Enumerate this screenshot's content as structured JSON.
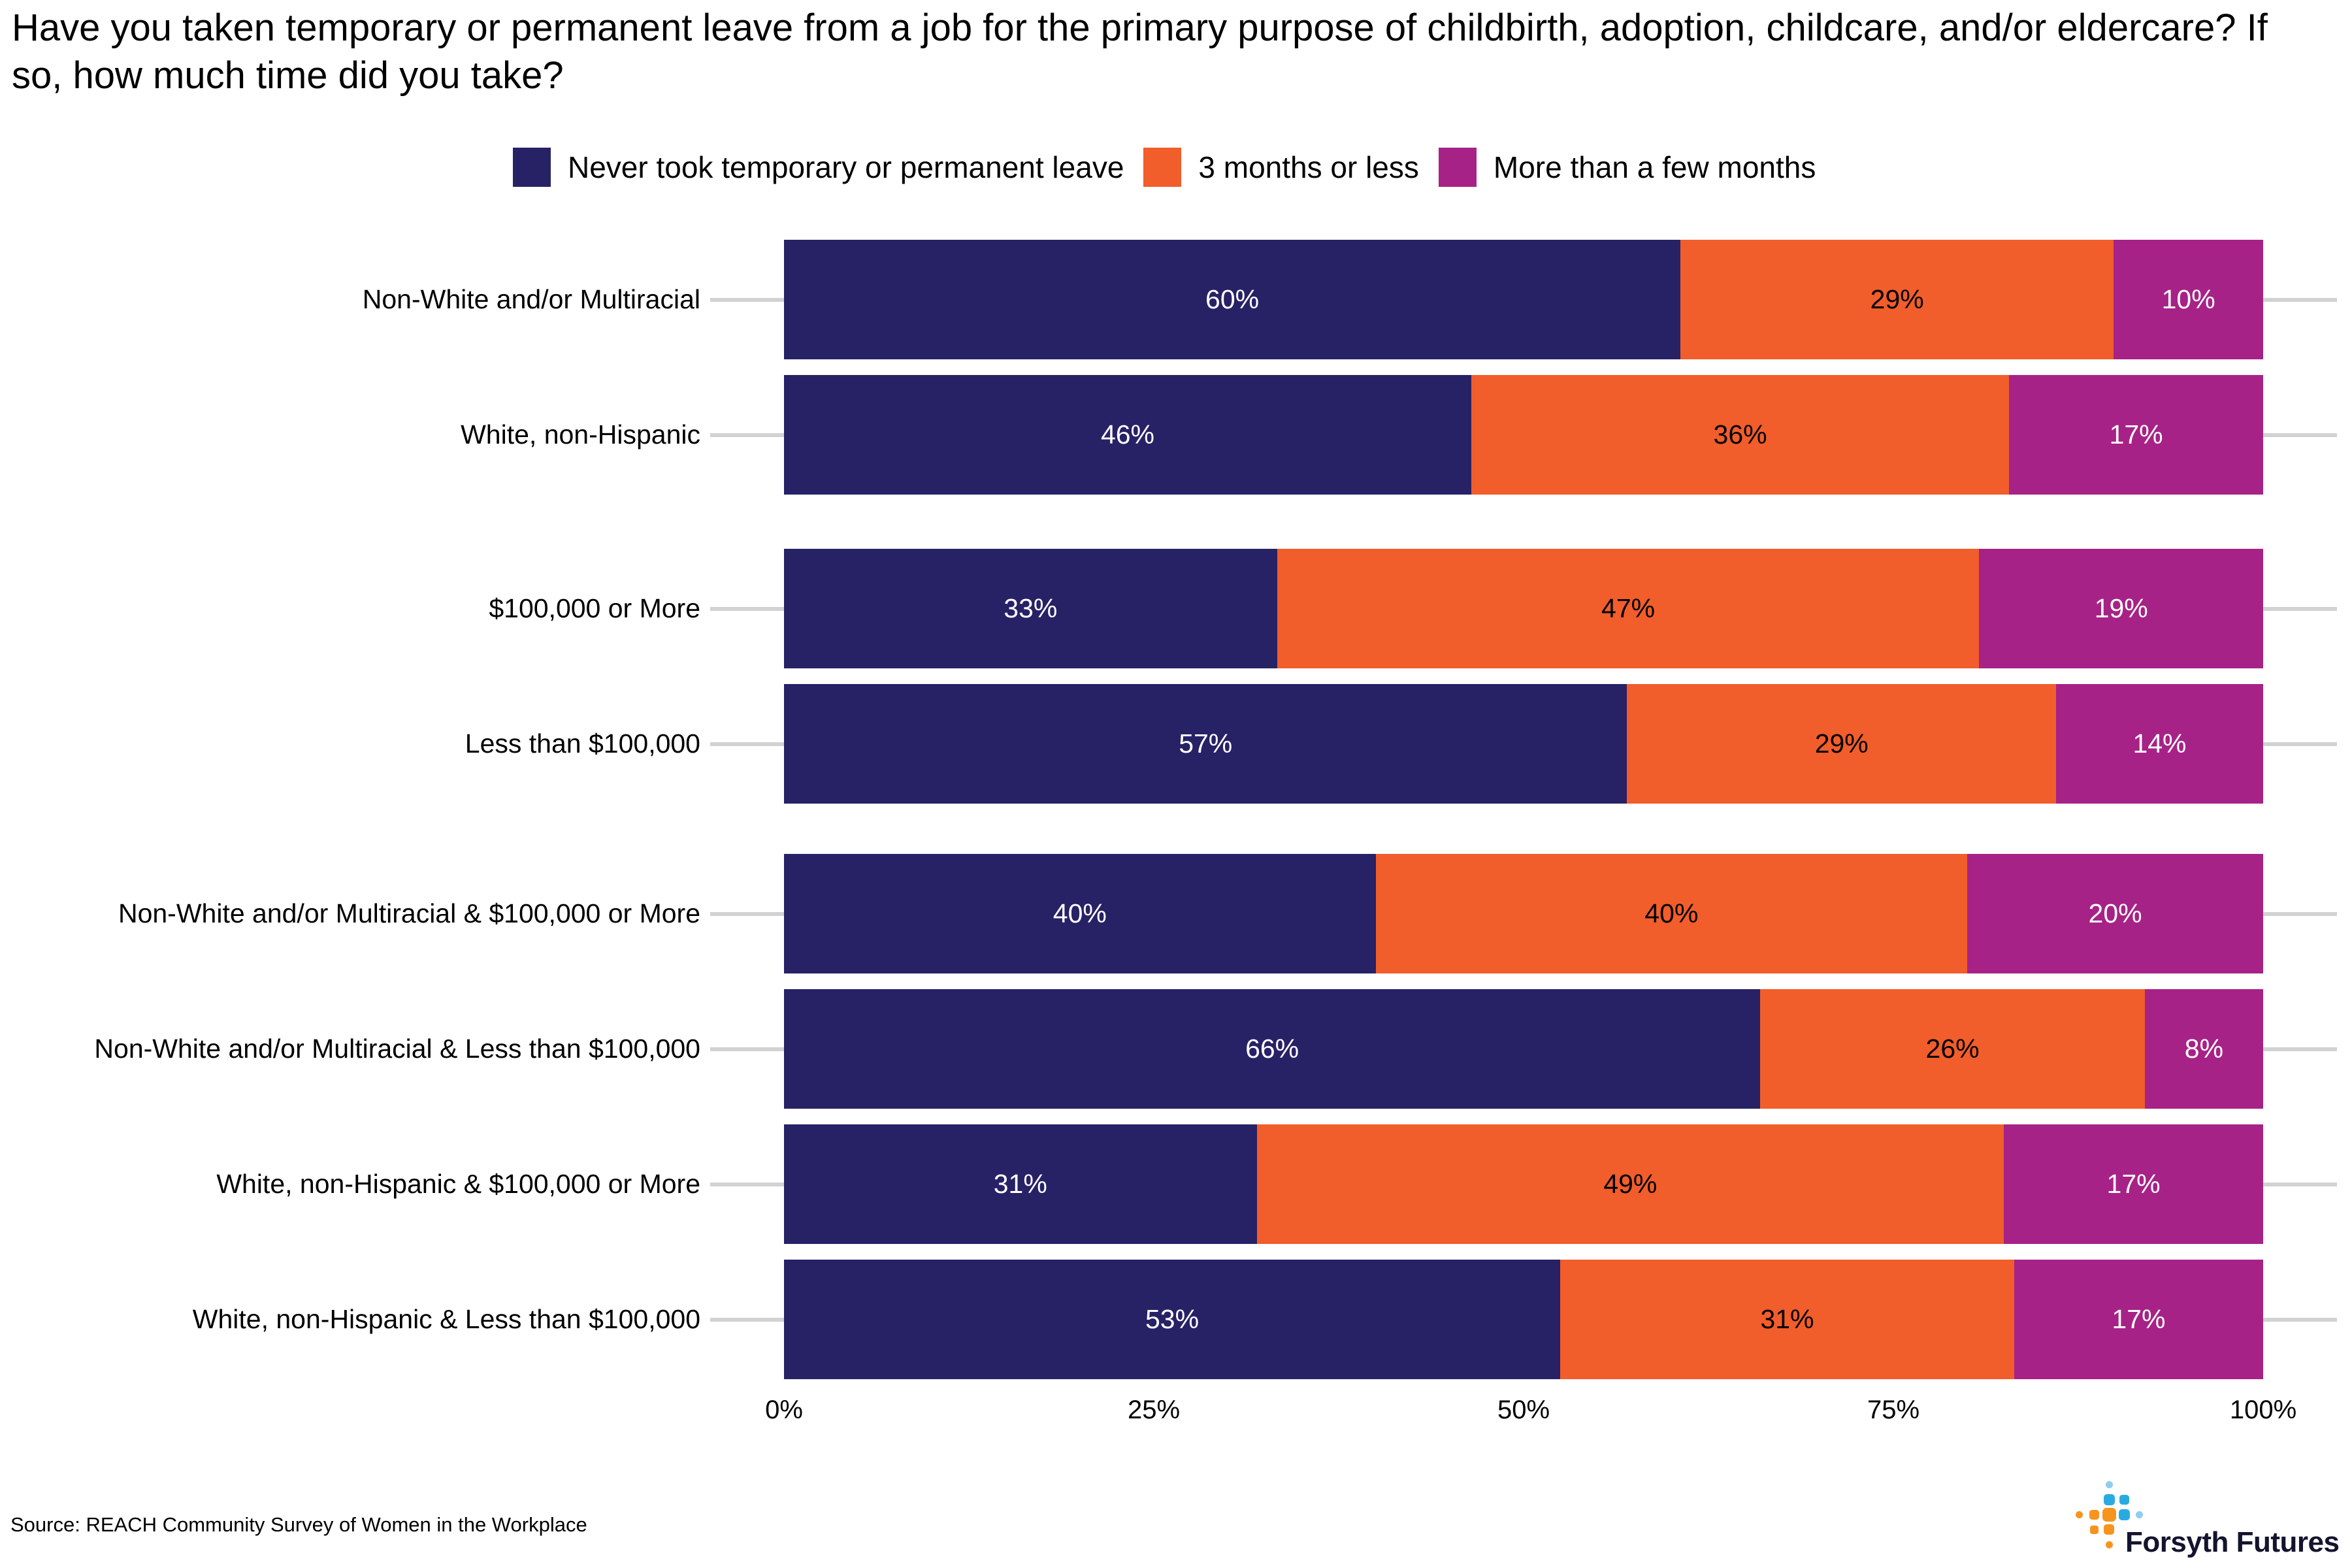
{
  "title": "Have you taken temporary or permanent leave from a job for the primary purpose of childbirth, adoption, childcare, and/or eldercare? If so, how much time did you take?",
  "legend": [
    {
      "label": "Never took temporary or permanent leave",
      "color": "#272166"
    },
    {
      "label": "3 months or less",
      "color": "#F15D2B"
    },
    {
      "label": "More than a few months",
      "color": "#A72287"
    }
  ],
  "colors": {
    "navy": "#272166",
    "orange": "#F15D2B",
    "magenta": "#A72287",
    "gridline": "#d2d2d2",
    "value_text_light": "#ffffff",
    "value_text_dark": "#000000"
  },
  "chart_data": {
    "type": "bar",
    "orientation": "horizontal-stacked",
    "title": "Have you taken temporary or permanent leave from a job for the primary purpose of childbirth, adoption, childcare, and/or eldercare? If so, how much time did you take?",
    "xlabel": "",
    "ylabel": "",
    "xlim": [
      0,
      100
    ],
    "x_ticks": [
      "0%",
      "25%",
      "50%",
      "75%",
      "100%"
    ],
    "grid": "horizontal category gridlines only",
    "legend_position": "top",
    "value_suffix": "%",
    "categories": [
      "Non-White and/or Multiracial",
      "White, non-Hispanic",
      "$100,000 or More",
      "Less than $100,000",
      "Non-White and/or Multiracial & $100,000 or More",
      "Non-White and/or Multiracial & Less than $100,000",
      "White, non-Hispanic & $100,000 or More",
      "White, non-Hispanic & Less than $100,000"
    ],
    "category_groups": [
      [
        0,
        1
      ],
      [
        2,
        3
      ],
      [
        4,
        5,
        6,
        7
      ]
    ],
    "series": [
      {
        "name": "Never took temporary or permanent leave",
        "color": "#272166",
        "values": [
          60,
          46,
          33,
          57,
          40,
          66,
          31,
          53
        ]
      },
      {
        "name": "3 months or less",
        "color": "#F15D2B",
        "values": [
          29,
          36,
          47,
          29,
          40,
          26,
          49,
          31
        ]
      },
      {
        "name": "More than a few months",
        "color": "#A72287",
        "values": [
          10,
          17,
          19,
          14,
          20,
          8,
          17,
          17
        ]
      }
    ]
  },
  "source": "Source: REACH Community Survey of Women in the Workplace",
  "logo": {
    "text": "Forsyth Futures",
    "icon_colors": {
      "orange": "#F7941D",
      "blue": "#29ABE2",
      "light_blue": "#8FCDEE"
    }
  }
}
